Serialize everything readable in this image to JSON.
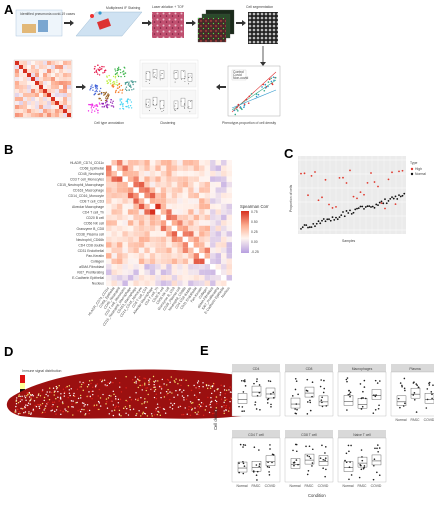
{
  "panels": {
    "A": {
      "letter": "A",
      "labels": {
        "clinical": "Identified pneumonia\ncovid-19 cases",
        "multiplex": "Multiplexed\nIF Staining",
        "ablation": "Laser ablation\n+ TOF",
        "seg": "Cell segmentation",
        "celltypes": "Cell type annotation",
        "cluster": "Clustering",
        "density": "Phenotype-proportion of cell density"
      },
      "legend_items": [
        "Control",
        "Covid",
        "Non-covid"
      ]
    },
    "B": {
      "letter": "B",
      "legend_title": "Spearman Corr",
      "legend_ticks": [
        "0.75",
        "0.50",
        "0.25",
        "0.00",
        "-0.25"
      ],
      "row_labels": [
        "HLADR_CD74_CD11c",
        "CD68_Epithelial",
        "CD45_Neutrophil",
        "CD3 T cell_Monocytes",
        "CD15_Neutrophil_Macrophage",
        "CD163_Macrophage",
        "CD14_CD16_Monocyte",
        "CD8 T cell_CD3",
        "Alveolar Macrophage",
        "CD4 T cell_Th",
        "CD20 B cell",
        "CD56 NK cell",
        "Granzyme B_CD8",
        "CD38_Plasma cell",
        "Neutrophil_CD66b",
        "CD4 CD8 double",
        "CD31 Endothelial",
        "Pan-Keratin",
        "Collagen",
        "aSMA Fibroblast",
        "Ki67_Proliferating",
        "E-Cadherin Epithelial",
        "Nucleus"
      ]
    },
    "C": {
      "letter": "C",
      "legend_title": "Type",
      "legend_items": [
        "High",
        "Normal"
      ],
      "y_label": "Proportion of cells",
      "x_label": "Samples"
    },
    "D": {
      "letter": "D",
      "title": "Immune signal distribution"
    },
    "E": {
      "letter": "E",
      "y_label": "Cell density",
      "x_label": "Condition",
      "x_ticks": [
        "Normal",
        "PASC",
        "COVID"
      ],
      "facets": [
        "CD4",
        "CD8",
        "Macrophages",
        "Plasma",
        "CD4 T cell",
        "CD8 T cell",
        "Naive T cell"
      ]
    }
  }
}
